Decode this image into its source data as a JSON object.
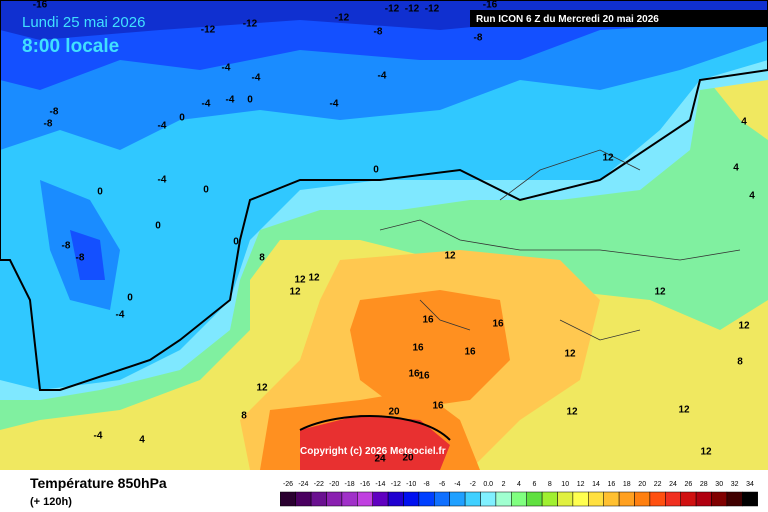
{
  "header": {
    "date": "Lundi 25 mai 2026",
    "time": "8:00 locale",
    "run": "Run ICON 6 Z du Mercredi 20 mai 2026"
  },
  "copyright": "Copyright (c) 2026 Meteociel.fr",
  "footer": {
    "title": "Température 850hPa",
    "lead": "(+ 120h)"
  },
  "colorbar": {
    "labels": [
      "-26",
      "-24",
      "-22",
      "-20",
      "-18",
      "-16",
      "-14",
      "-12",
      "-10",
      "-8",
      "-6",
      "-4",
      "-2",
      "0.0",
      "2",
      "4",
      "6",
      "8",
      "10",
      "12",
      "14",
      "16",
      "18",
      "20",
      "22",
      "24",
      "26",
      "28",
      "30",
      "32",
      "34"
    ],
    "colors": [
      "#2a0030",
      "#4a0060",
      "#6a1090",
      "#8a20b0",
      "#a030c8",
      "#c040e0",
      "#6000c0",
      "#2000d0",
      "#0010f0",
      "#0040ff",
      "#1070ff",
      "#20a0ff",
      "#40d0ff",
      "#80f0ff",
      "#a0ffd0",
      "#80ff80",
      "#60e040",
      "#a0f030",
      "#e0f040",
      "#ffff50",
      "#ffe040",
      "#ffc030",
      "#ffa020",
      "#ff8010",
      "#ff5010",
      "#f03020",
      "#d01010",
      "#b00010",
      "#800000",
      "#400000",
      "#000000"
    ]
  },
  "contour_labels": [
    "-16",
    "-12",
    "-12",
    "-12",
    "-12",
    "-12",
    "-16",
    "-8",
    "-8",
    "-12",
    "-4",
    "-4",
    "-4",
    "-4",
    "-4",
    "-8",
    "-8",
    "-4",
    "-4",
    "0",
    "0",
    "0",
    "-4",
    "0",
    "0",
    "0",
    "-4",
    "-8",
    "-8",
    "0",
    "0",
    "8",
    "12",
    "12",
    "12",
    "12",
    "16",
    "16",
    "16",
    "16",
    "16",
    "16",
    "16",
    "20",
    "24",
    "20",
    "12",
    "12",
    "12",
    "8",
    "8",
    "12",
    "12",
    "-4",
    "4",
    "12",
    "12",
    "12",
    "4",
    "4",
    "4"
  ]
}
